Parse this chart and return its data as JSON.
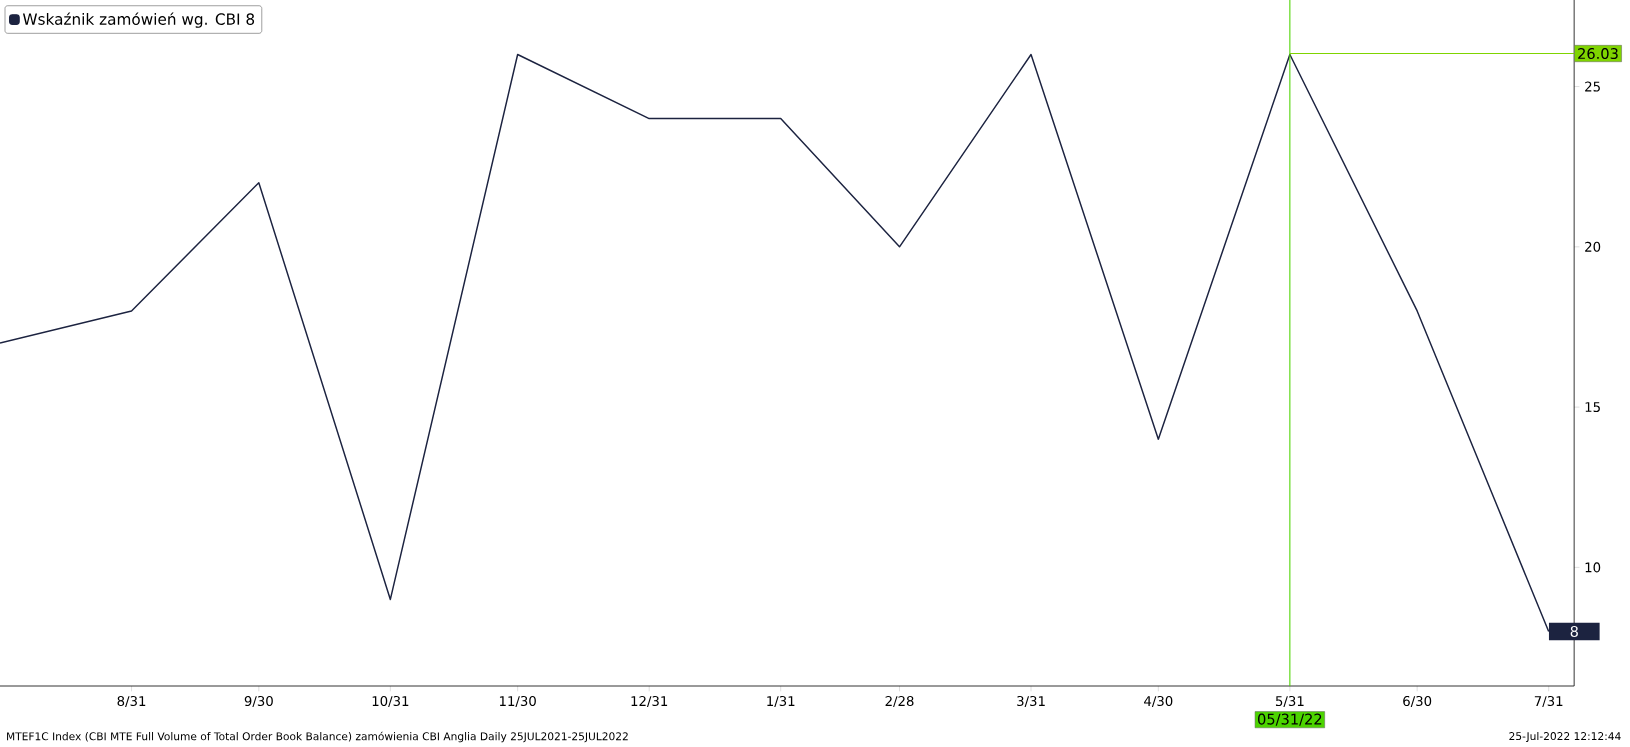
{
  "chart_data": {
    "type": "line",
    "x": [
      "2021-07-31",
      "2021-08-31",
      "2021-09-30",
      "2021-10-31",
      "2021-11-30",
      "2021-12-31",
      "2022-01-31",
      "2022-02-28",
      "2022-03-31",
      "2022-04-30",
      "2022-05-31",
      "2022-06-30",
      "2022-07-31"
    ],
    "series": [
      {
        "name": "Wskaźnik zamówień wg. CBI 8",
        "color": "#1c2340",
        "values": [
          17,
          18,
          22,
          9,
          26,
          24,
          24,
          20,
          26,
          14,
          26,
          18,
          8
        ],
        "value_labels": [
          null,
          null,
          null,
          null,
          null,
          null,
          null,
          null,
          null,
          null,
          null,
          null,
          "8"
        ]
      }
    ],
    "xlim": [
      "2021-07-31",
      "2022-08-06"
    ],
    "xticks": [
      {
        "value": "2021-08-31",
        "label": "8/31"
      },
      {
        "value": "2021-09-30",
        "label": "9/30"
      },
      {
        "value": "2021-10-31",
        "label": "10/31"
      },
      {
        "value": "2021-11-30",
        "label": "11/30"
      },
      {
        "value": "2021-12-31",
        "label": "12/31"
      },
      {
        "value": "2022-01-31",
        "label": "1/31"
      },
      {
        "value": "2022-02-28",
        "label": "2/28"
      },
      {
        "value": "2022-03-31",
        "label": "3/31"
      },
      {
        "value": "2022-04-30",
        "label": "4/30"
      },
      {
        "value": "2022-05-31",
        "label": "5/31"
      },
      {
        "value": "2022-06-30",
        "label": "6/30"
      },
      {
        "value": "2022-07-31",
        "label": "7/31"
      }
    ],
    "ylim": [
      6.3,
      27.7
    ],
    "yticks": [
      10,
      15,
      20,
      25
    ],
    "ref_lines": [
      {
        "axis": "x",
        "value": "2022-05-31",
        "label": "05/31/22",
        "color": "#4cd400"
      },
      {
        "axis": "y",
        "value": 26.03,
        "label": "26.03",
        "color": "#7fd400"
      }
    ],
    "legend": "top left",
    "marker": "none",
    "line_style": "solid",
    "annotations": [
      "MTEF1C Index (CBI MTE Full Volume of Total Order Book Balance) zamówienia CBI Anglia  Daily 25JUL2021-25JUL2022",
      "25-Jul-2022 12:12:44"
    ]
  }
}
